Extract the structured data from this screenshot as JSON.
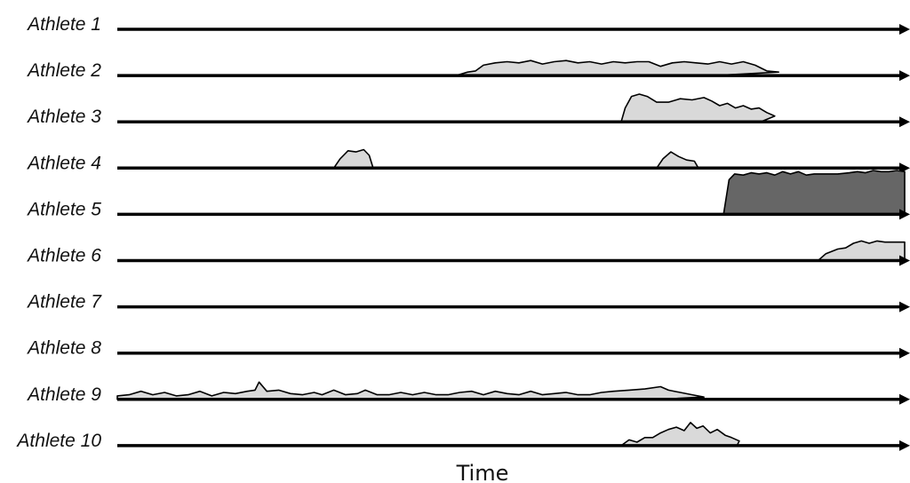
{
  "chart_data": {
    "type": "area",
    "xlabel": "Time",
    "ylabel": "",
    "xlim": [
      0,
      100
    ],
    "colors": {
      "light": "#d9d9d9",
      "dark": "#666666",
      "line": "#000000"
    },
    "rows": [
      {
        "label": "Athlete 1",
        "color": "light",
        "segments": []
      },
      {
        "label": "Athlete 2",
        "color": "light",
        "segments": [
          [
            [
              43.0,
              0
            ],
            [
              44.5,
              0.15
            ],
            [
              45.5,
              0.2
            ],
            [
              46.5,
              0.45
            ],
            [
              48,
              0.55
            ],
            [
              49.5,
              0.6
            ],
            [
              51,
              0.55
            ],
            [
              52.5,
              0.65
            ],
            [
              54,
              0.5
            ],
            [
              55.5,
              0.6
            ],
            [
              57,
              0.65
            ],
            [
              58.5,
              0.55
            ],
            [
              60,
              0.6
            ],
            [
              61.5,
              0.5
            ],
            [
              63,
              0.6
            ],
            [
              64.5,
              0.55
            ],
            [
              66,
              0.6
            ],
            [
              67.5,
              0.6
            ],
            [
              69,
              0.4
            ],
            [
              70.5,
              0.55
            ],
            [
              72,
              0.6
            ],
            [
              73.5,
              0.55
            ],
            [
              75,
              0.5
            ],
            [
              76.5,
              0.6
            ],
            [
              78,
              0.5
            ],
            [
              79.5,
              0.6
            ],
            [
              81,
              0.45
            ],
            [
              82.5,
              0.2
            ],
            [
              84,
              0.15
            ],
            [
              75.9,
              0
            ]
          ]
        ]
      },
      {
        "label": "Athlete 3",
        "color": "light",
        "segments": [
          [
            [
              64.0,
              0
            ],
            [
              64.5,
              0.6
            ],
            [
              65.3,
              1.1
            ],
            [
              66.3,
              1.2
            ],
            [
              67.3,
              1.1
            ],
            [
              68.5,
              0.85
            ],
            [
              70,
              0.85
            ],
            [
              71.5,
              1.0
            ],
            [
              73,
              0.95
            ],
            [
              74.5,
              1.05
            ],
            [
              75.5,
              0.9
            ],
            [
              76.5,
              0.7
            ],
            [
              77.5,
              0.8
            ],
            [
              78.5,
              0.6
            ],
            [
              79.5,
              0.7
            ],
            [
              80.5,
              0.55
            ],
            [
              81.5,
              0.6
            ],
            [
              82.5,
              0.4
            ],
            [
              83.5,
              0.25
            ],
            [
              81.7,
              0
            ]
          ]
        ]
      },
      {
        "label": "Athlete 4",
        "color": "light",
        "segments": [
          [
            [
              27.5,
              0
            ],
            [
              28.3,
              0.4
            ],
            [
              29.3,
              0.75
            ],
            [
              30.3,
              0.7
            ],
            [
              31.3,
              0.8
            ],
            [
              32,
              0.55
            ],
            [
              32.5,
              0
            ]
          ],
          [
            [
              68.5,
              0
            ],
            [
              69.3,
              0.4
            ],
            [
              70.3,
              0.7
            ],
            [
              71.3,
              0.5
            ],
            [
              72.3,
              0.35
            ],
            [
              73.3,
              0.3
            ],
            [
              73.8,
              0
            ]
          ]
        ]
      },
      {
        "label": "Athlete 5",
        "color": "dark",
        "segments": [
          [
            [
              77.0,
              0
            ],
            [
              77.7,
              1.5
            ],
            [
              78.4,
              1.75
            ],
            [
              79.5,
              1.7
            ],
            [
              80.5,
              1.8
            ],
            [
              81.5,
              1.75
            ],
            [
              82.5,
              1.8
            ],
            [
              83.5,
              1.7
            ],
            [
              84.5,
              1.85
            ],
            [
              85.5,
              1.75
            ],
            [
              86.5,
              1.85
            ],
            [
              87.5,
              1.7
            ],
            [
              88.5,
              1.75
            ],
            [
              90,
              1.75
            ],
            [
              91.5,
              1.75
            ],
            [
              93,
              1.8
            ],
            [
              94,
              1.85
            ],
            [
              95,
              1.8
            ],
            [
              96,
              1.9
            ],
            [
              97,
              1.85
            ],
            [
              98,
              1.85
            ],
            [
              99,
              1.9
            ],
            [
              100,
              1.85
            ],
            [
              100,
              0
            ]
          ]
        ]
      },
      {
        "label": "Athlete 6",
        "color": "light",
        "segments": [
          [
            [
              89.0,
              0
            ],
            [
              90,
              0.3
            ],
            [
              91.5,
              0.5
            ],
            [
              92.5,
              0.55
            ],
            [
              93.5,
              0.75
            ],
            [
              94.5,
              0.85
            ],
            [
              95.5,
              0.75
            ],
            [
              96.5,
              0.85
            ],
            [
              97.5,
              0.8
            ],
            [
              98.5,
              0.8
            ],
            [
              100,
              0.8
            ],
            [
              100,
              0
            ]
          ]
        ]
      },
      {
        "label": "Athlete 7",
        "color": "light",
        "segments": []
      },
      {
        "label": "Athlete 8",
        "color": "light",
        "segments": []
      },
      {
        "label": "Athlete 9",
        "color": "light",
        "segments": [
          [
            [
              0,
              0
            ],
            [
              0,
              0.15
            ],
            [
              1.5,
              0.2
            ],
            [
              3,
              0.35
            ],
            [
              4.5,
              0.2
            ],
            [
              6,
              0.3
            ],
            [
              7.5,
              0.15
            ],
            [
              9,
              0.2
            ],
            [
              10.5,
              0.35
            ],
            [
              12,
              0.15
            ],
            [
              13.5,
              0.3
            ],
            [
              15,
              0.25
            ],
            [
              16.5,
              0.35
            ],
            [
              17.5,
              0.4
            ],
            [
              18,
              0.75
            ],
            [
              19,
              0.35
            ],
            [
              20.5,
              0.4
            ],
            [
              22,
              0.25
            ],
            [
              23.5,
              0.2
            ],
            [
              25,
              0.3
            ],
            [
              26,
              0.2
            ],
            [
              27.5,
              0.4
            ],
            [
              29,
              0.2
            ],
            [
              30.5,
              0.25
            ],
            [
              31.5,
              0.4
            ],
            [
              33,
              0.2
            ],
            [
              34.5,
              0.2
            ],
            [
              36,
              0.3
            ],
            [
              37.5,
              0.2
            ],
            [
              39,
              0.3
            ],
            [
              40.5,
              0.2
            ],
            [
              42,
              0.2
            ],
            [
              43.5,
              0.3
            ],
            [
              45,
              0.35
            ],
            [
              46.5,
              0.2
            ],
            [
              48,
              0.35
            ],
            [
              49.5,
              0.25
            ],
            [
              51,
              0.2
            ],
            [
              52.5,
              0.35
            ],
            [
              54,
              0.2
            ],
            [
              55.5,
              0.25
            ],
            [
              57,
              0.3
            ],
            [
              58.5,
              0.2
            ],
            [
              60,
              0.2
            ],
            [
              61.5,
              0.3
            ],
            [
              63,
              0.35
            ],
            [
              65,
              0.4
            ],
            [
              67,
              0.45
            ],
            [
              69,
              0.55
            ],
            [
              70,
              0.4
            ],
            [
              71.5,
              0.3
            ],
            [
              73,
              0.2
            ],
            [
              74.5,
              0.1
            ],
            [
              68.7,
              0
            ]
          ]
        ]
      },
      {
        "label": "Athlete 10",
        "color": "light",
        "segments": [
          [
            [
              64.0,
              0
            ],
            [
              65,
              0.25
            ],
            [
              66,
              0.15
            ],
            [
              67,
              0.35
            ],
            [
              68,
              0.35
            ],
            [
              69,
              0.55
            ],
            [
              70,
              0.7
            ],
            [
              71,
              0.8
            ],
            [
              72,
              0.65
            ],
            [
              72.8,
              1.0
            ],
            [
              73.6,
              0.75
            ],
            [
              74.4,
              0.85
            ],
            [
              75.3,
              0.55
            ],
            [
              76.2,
              0.7
            ],
            [
              77.2,
              0.45
            ],
            [
              78,
              0.35
            ],
            [
              79,
              0.2
            ],
            [
              78.7,
              0
            ]
          ]
        ]
      }
    ]
  }
}
